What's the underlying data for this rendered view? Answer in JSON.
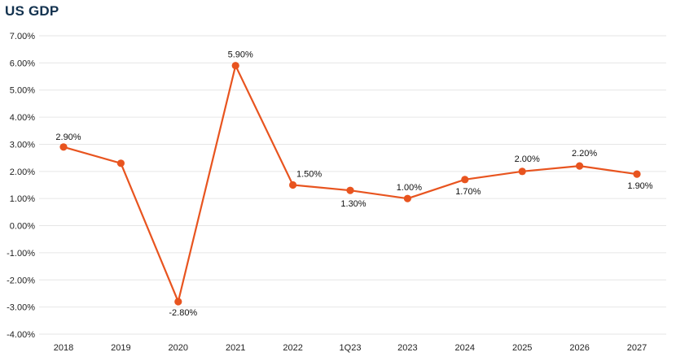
{
  "chart_data": {
    "type": "line",
    "title": "US GDP",
    "categories": [
      "2018",
      "2019",
      "2020",
      "2021",
      "2022",
      "1Q23",
      "2023",
      "2024",
      "2025",
      "2026",
      "2027"
    ],
    "series": [
      {
        "values": [
          2.9,
          2.3,
          -2.8,
          5.9,
          1.5,
          1.3,
          1.0,
          1.7,
          2.0,
          2.2,
          1.9
        ]
      }
    ],
    "data_labels": [
      "2.90%",
      null,
      "-2.80%",
      "5.90%",
      "1.50%",
      "1.30%",
      "1.00%",
      "1.70%",
      "2.00%",
      "2.20%",
      "1.90%"
    ],
    "y_ticks": [
      "7.00%",
      "6.00%",
      "5.00%",
      "4.00%",
      "3.00%",
      "2.00%",
      "1.00%",
      "0.00%",
      "-1.00%",
      "-2.00%",
      "-3.00%",
      "-4.00%"
    ],
    "ylim": [
      -4,
      7
    ],
    "grid": true,
    "legend": "none",
    "colors": {
      "line": "#e8541f",
      "grid": "#e6e6e6",
      "title": "#13324f"
    }
  }
}
